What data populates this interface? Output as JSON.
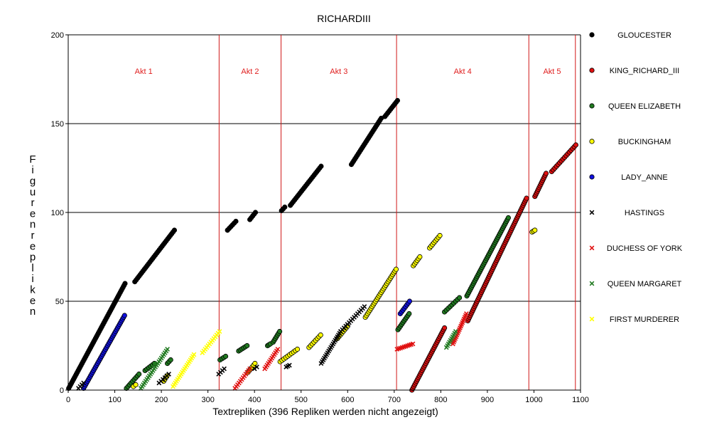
{
  "chart_data": {
    "type": "scatter",
    "title": "RICHARDIII",
    "xlabel": "Textrepliken (396 Repliken werden nicht angezeigt)",
    "ylabel": "Figurenrepliken",
    "xlim": [
      0,
      1100
    ],
    "ylim": [
      0,
      200
    ],
    "x_ticks": [
      "0",
      "100",
      "200",
      "300",
      "400",
      "500",
      "600",
      "700",
      "800",
      "900",
      "1000",
      "1100"
    ],
    "y_ticks": [
      "0",
      "50",
      "100",
      "150",
      "200"
    ],
    "grid": "horizontal",
    "legend_position": "right",
    "act_boundaries": [
      {
        "label": "Akt 1",
        "start": 0,
        "end": 324
      },
      {
        "label": "Akt 2",
        "start": 324,
        "end": 457
      },
      {
        "label": "Akt 3",
        "start": 457,
        "end": 705
      },
      {
        "label": "Akt 4",
        "start": 705,
        "end": 989
      },
      {
        "label": "Akt 5",
        "start": 989,
        "end": 1089
      }
    ],
    "series": [
      {
        "name": "GLOUCESTER",
        "marker": "circle",
        "color": "#000000",
        "segments": [
          {
            "x0": 1,
            "x1": 122,
            "y0": 1,
            "y1": 60
          },
          {
            "x0": 143,
            "x1": 228,
            "y0": 61,
            "y1": 90
          },
          {
            "x0": 342,
            "x1": 360,
            "y0": 90,
            "y1": 95
          },
          {
            "x0": 390,
            "x1": 402,
            "y0": 96,
            "y1": 100
          },
          {
            "x0": 458,
            "x1": 465,
            "y0": 101,
            "y1": 103
          },
          {
            "x0": 477,
            "x1": 543,
            "y0": 104,
            "y1": 126
          },
          {
            "x0": 608,
            "x1": 672,
            "y0": 127,
            "y1": 153
          },
          {
            "x0": 680,
            "x1": 707,
            "y0": 154,
            "y1": 163
          }
        ]
      },
      {
        "name": "KING_RICHARD_III",
        "marker": "circle",
        "color": "#e01010",
        "segments": [
          {
            "x0": 738,
            "x1": 808,
            "y0": 0,
            "y1": 35
          },
          {
            "x0": 858,
            "x1": 984,
            "y0": 39,
            "y1": 108
          },
          {
            "x0": 1002,
            "x1": 1026,
            "y0": 109,
            "y1": 122
          },
          {
            "x0": 1038,
            "x1": 1090,
            "y0": 123,
            "y1": 138
          }
        ]
      },
      {
        "name": "QUEEN ELIZABETH",
        "marker": "circle",
        "color": "#207a20",
        "segments": [
          {
            "x0": 125,
            "x1": 152,
            "y0": 1,
            "y1": 9
          },
          {
            "x0": 165,
            "x1": 185,
            "y0": 11,
            "y1": 15
          },
          {
            "x0": 213,
            "x1": 220,
            "y0": 15,
            "y1": 17
          },
          {
            "x0": 326,
            "x1": 338,
            "y0": 17,
            "y1": 19
          },
          {
            "x0": 366,
            "x1": 384,
            "y0": 22,
            "y1": 25
          },
          {
            "x0": 428,
            "x1": 434,
            "y0": 25,
            "y1": 26
          },
          {
            "x0": 440,
            "x1": 454,
            "y0": 27,
            "y1": 33
          },
          {
            "x0": 708,
            "x1": 732,
            "y0": 34,
            "y1": 43
          },
          {
            "x0": 808,
            "x1": 840,
            "y0": 44,
            "y1": 52
          },
          {
            "x0": 856,
            "x1": 945,
            "y0": 53,
            "y1": 97
          }
        ]
      },
      {
        "name": "BUCKINGHAM",
        "marker": "circle",
        "color": "#ffff00",
        "segments": [
          {
            "x0": 140,
            "x1": 145,
            "y0": 2,
            "y1": 3
          },
          {
            "x0": 205,
            "x1": 212,
            "y0": 5,
            "y1": 8
          },
          {
            "x0": 386,
            "x1": 401,
            "y0": 10,
            "y1": 15
          },
          {
            "x0": 455,
            "x1": 492,
            "y0": 16,
            "y1": 23
          },
          {
            "x0": 517,
            "x1": 542,
            "y0": 24,
            "y1": 31
          },
          {
            "x0": 578,
            "x1": 600,
            "y0": 29,
            "y1": 36
          },
          {
            "x0": 638,
            "x1": 704,
            "y0": 41,
            "y1": 68
          },
          {
            "x0": 741,
            "x1": 755,
            "y0": 70,
            "y1": 75
          },
          {
            "x0": 776,
            "x1": 798,
            "y0": 80,
            "y1": 87
          },
          {
            "x0": 996,
            "x1": 1002,
            "y0": 89,
            "y1": 90
          }
        ]
      },
      {
        "name": "LADY_ANNE",
        "marker": "circle",
        "color": "#1010e0",
        "segments": [
          {
            "x0": 33,
            "x1": 121,
            "y0": 1,
            "y1": 42
          },
          {
            "x0": 713,
            "x1": 733,
            "y0": 43,
            "y1": 50
          }
        ]
      },
      {
        "name": "HASTINGS",
        "marker": "cross",
        "color": "#000000",
        "segments": [
          {
            "x0": 22,
            "x1": 33,
            "y0": 1,
            "y1": 4
          },
          {
            "x0": 195,
            "x1": 216,
            "y0": 4,
            "y1": 9
          },
          {
            "x0": 323,
            "x1": 335,
            "y0": 9,
            "y1": 12
          },
          {
            "x0": 400,
            "x1": 405,
            "y0": 12,
            "y1": 13
          },
          {
            "x0": 468,
            "x1": 475,
            "y0": 13,
            "y1": 14
          },
          {
            "x0": 543,
            "x1": 585,
            "y0": 15,
            "y1": 33
          },
          {
            "x0": 585,
            "x1": 636,
            "y0": 33,
            "y1": 47
          }
        ]
      },
      {
        "name": "DUCHESS OF YORK",
        "marker": "cross",
        "color": "#e01010",
        "segments": [
          {
            "x0": 358,
            "x1": 390,
            "y0": 1,
            "y1": 12
          },
          {
            "x0": 422,
            "x1": 450,
            "y0": 12,
            "y1": 23
          },
          {
            "x0": 706,
            "x1": 740,
            "y0": 23,
            "y1": 26
          },
          {
            "x0": 826,
            "x1": 855,
            "y0": 26,
            "y1": 43
          }
        ]
      },
      {
        "name": "QUEEN MARGARET",
        "marker": "cross",
        "color": "#207a20",
        "segments": [
          {
            "x0": 156,
            "x1": 213,
            "y0": 1,
            "y1": 23
          },
          {
            "x0": 812,
            "x1": 832,
            "y0": 24,
            "y1": 33
          }
        ]
      },
      {
        "name": "FIRST MURDERER",
        "marker": "cross",
        "color": "#ffff00",
        "segments": [
          {
            "x0": 225,
            "x1": 270,
            "y0": 2,
            "y1": 20
          },
          {
            "x0": 288,
            "x1": 325,
            "y0": 21,
            "y1": 33
          }
        ]
      }
    ]
  }
}
